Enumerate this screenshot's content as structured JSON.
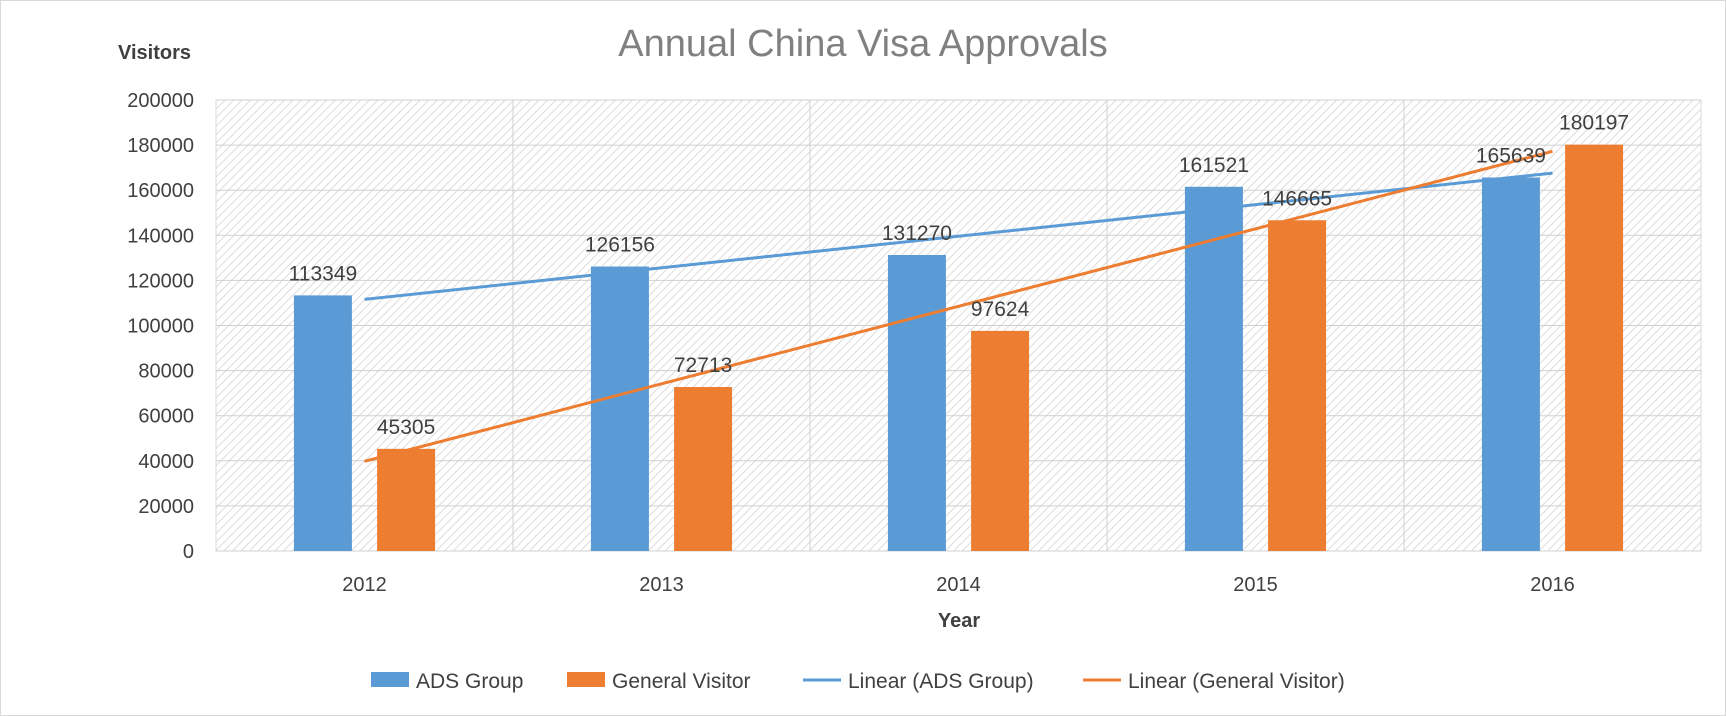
{
  "chart_data": {
    "type": "bar",
    "title": "Annual China Visa Approvals",
    "xlabel": "Year",
    "ylabel": "Visitors",
    "categories": [
      "2012",
      "2013",
      "2014",
      "2015",
      "2016"
    ],
    "ylim": [
      0,
      200000
    ],
    "yticks": [
      0,
      20000,
      40000,
      60000,
      80000,
      100000,
      120000,
      140000,
      160000,
      180000,
      200000
    ],
    "grid": true,
    "legend_position": "bottom",
    "series": [
      {
        "name": "ADS Group",
        "values": [
          113349,
          126156,
          131270,
          161521,
          165639
        ],
        "color": "#5b9bd5",
        "data_labels": [
          "113349",
          "126156",
          "131270",
          "161521",
          "165639"
        ]
      },
      {
        "name": "General Visitor",
        "values": [
          45305,
          72713,
          97624,
          146665,
          180197
        ],
        "color": "#ed7d31",
        "data_labels": [
          "45305",
          "72713",
          "97624",
          "146665",
          "180197"
        ]
      }
    ],
    "trendlines": [
      {
        "name": "Linear (ADS Group)",
        "type": "linear",
        "series": "ADS Group",
        "color": "#5b9bd5"
      },
      {
        "name": "Linear (General Visitor)",
        "type": "linear",
        "series": "General Visitor",
        "color": "#ed7d31"
      }
    ]
  }
}
